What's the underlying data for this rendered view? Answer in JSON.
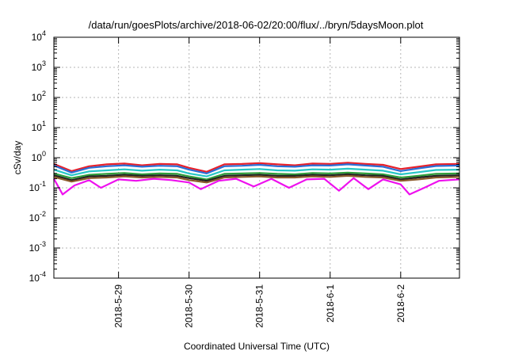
{
  "chart_data": {
    "type": "line",
    "title": "/data/run/goesPlots/archive/2018-06-02/20:00/flux/../bryn/5daysMoon.plot",
    "xlabel": "Coordinated Universal Time (UTC)",
    "ylabel": "cSv/day",
    "yscale": "log",
    "ylim": [
      0.0001,
      10000
    ],
    "xlim": [
      "2018-05-28 02:00",
      "2018-06-02 20:00"
    ],
    "grid": true,
    "y_ticks": [
      {
        "value": 0.0001,
        "base": "10",
        "exp": "-4"
      },
      {
        "value": 0.001,
        "base": "10",
        "exp": "-3"
      },
      {
        "value": 0.01,
        "base": "10",
        "exp": "-2"
      },
      {
        "value": 0.1,
        "base": "10",
        "exp": "-1"
      },
      {
        "value": 1,
        "base": "10",
        "exp": "0"
      },
      {
        "value": 10,
        "base": "10",
        "exp": "1"
      },
      {
        "value": 100,
        "base": "10",
        "exp": "2"
      },
      {
        "value": 1000,
        "base": "10",
        "exp": "3"
      },
      {
        "value": 10000,
        "base": "10",
        "exp": "4"
      }
    ],
    "x_ticks": [
      {
        "date": "2018-05-29 00:00",
        "label": "2018-5-29"
      },
      {
        "date": "2018-05-30 00:00",
        "label": "2018-5-30"
      },
      {
        "date": "2018-05-31 00:00",
        "label": "2018-5-31"
      },
      {
        "date": "2018-06-01 00:00",
        "label": "2018-6-1"
      },
      {
        "date": "2018-06-02 00:00",
        "label": "2018-6-2"
      }
    ],
    "series": [
      {
        "color": "#e8202a",
        "values": [
          [
            "2018-05-28 02:00",
            0.62
          ],
          [
            "2018-05-28 08:00",
            0.36
          ],
          [
            "2018-05-28 14:00",
            0.52
          ],
          [
            "2018-05-28 20:00",
            0.6
          ],
          [
            "2018-05-29 02:00",
            0.64
          ],
          [
            "2018-05-29 08:00",
            0.56
          ],
          [
            "2018-05-29 14:00",
            0.62
          ],
          [
            "2018-05-29 20:00",
            0.6
          ],
          [
            "2018-05-30 00:00",
            0.46
          ],
          [
            "2018-05-30 06:00",
            0.34
          ],
          [
            "2018-05-30 12:00",
            0.6
          ],
          [
            "2018-05-30 18:00",
            0.62
          ],
          [
            "2018-05-31 00:00",
            0.66
          ],
          [
            "2018-05-31 06:00",
            0.6
          ],
          [
            "2018-05-31 12:00",
            0.56
          ],
          [
            "2018-05-31 18:00",
            0.64
          ],
          [
            "2018-06-01 00:00",
            0.62
          ],
          [
            "2018-06-01 06:00",
            0.68
          ],
          [
            "2018-06-01 12:00",
            0.62
          ],
          [
            "2018-06-01 18:00",
            0.58
          ],
          [
            "2018-06-02 00:00",
            0.42
          ],
          [
            "2018-06-02 06:00",
            0.5
          ],
          [
            "2018-06-02 12:00",
            0.6
          ],
          [
            "2018-06-02 20:00",
            0.62
          ]
        ]
      },
      {
        "color": "#2a6fd6",
        "values": [
          [
            "2018-05-28 02:00",
            0.55
          ],
          [
            "2018-05-28 08:00",
            0.32
          ],
          [
            "2018-05-28 14:00",
            0.46
          ],
          [
            "2018-05-28 20:00",
            0.52
          ],
          [
            "2018-05-29 02:00",
            0.56
          ],
          [
            "2018-05-29 08:00",
            0.5
          ],
          [
            "2018-05-29 14:00",
            0.54
          ],
          [
            "2018-05-29 20:00",
            0.52
          ],
          [
            "2018-05-30 00:00",
            0.4
          ],
          [
            "2018-05-30 06:00",
            0.3
          ],
          [
            "2018-05-30 12:00",
            0.52
          ],
          [
            "2018-05-30 18:00",
            0.54
          ],
          [
            "2018-05-31 00:00",
            0.58
          ],
          [
            "2018-05-31 06:00",
            0.52
          ],
          [
            "2018-05-31 12:00",
            0.5
          ],
          [
            "2018-05-31 18:00",
            0.56
          ],
          [
            "2018-06-01 00:00",
            0.55
          ],
          [
            "2018-06-01 06:00",
            0.6
          ],
          [
            "2018-06-01 12:00",
            0.55
          ],
          [
            "2018-06-01 18:00",
            0.5
          ],
          [
            "2018-06-02 00:00",
            0.36
          ],
          [
            "2018-06-02 06:00",
            0.44
          ],
          [
            "2018-06-02 12:00",
            0.53
          ],
          [
            "2018-06-02 20:00",
            0.55
          ]
        ]
      },
      {
        "color": "#26c6c6",
        "values": [
          [
            "2018-05-28 02:00",
            0.4
          ],
          [
            "2018-05-28 08:00",
            0.26
          ],
          [
            "2018-05-28 14:00",
            0.35
          ],
          [
            "2018-05-28 20:00",
            0.38
          ],
          [
            "2018-05-29 02:00",
            0.41
          ],
          [
            "2018-05-29 08:00",
            0.37
          ],
          [
            "2018-05-29 14:00",
            0.4
          ],
          [
            "2018-05-29 20:00",
            0.38
          ],
          [
            "2018-05-30 00:00",
            0.3
          ],
          [
            "2018-05-30 06:00",
            0.24
          ],
          [
            "2018-05-30 12:00",
            0.38
          ],
          [
            "2018-05-30 18:00",
            0.4
          ],
          [
            "2018-05-31 00:00",
            0.42
          ],
          [
            "2018-05-31 06:00",
            0.38
          ],
          [
            "2018-05-31 12:00",
            0.37
          ],
          [
            "2018-05-31 18:00",
            0.41
          ],
          [
            "2018-06-01 00:00",
            0.4
          ],
          [
            "2018-06-01 06:00",
            0.43
          ],
          [
            "2018-06-01 12:00",
            0.4
          ],
          [
            "2018-06-01 18:00",
            0.37
          ],
          [
            "2018-06-02 00:00",
            0.28
          ],
          [
            "2018-06-02 06:00",
            0.33
          ],
          [
            "2018-06-02 12:00",
            0.39
          ],
          [
            "2018-06-02 20:00",
            0.4
          ]
        ]
      },
      {
        "color": "#2e9e3a",
        "values": [
          [
            "2018-05-28 02:00",
            0.3
          ],
          [
            "2018-05-28 08:00",
            0.21
          ],
          [
            "2018-05-28 14:00",
            0.27
          ],
          [
            "2018-05-28 20:00",
            0.29
          ],
          [
            "2018-05-29 02:00",
            0.31
          ],
          [
            "2018-05-29 08:00",
            0.28
          ],
          [
            "2018-05-29 14:00",
            0.3
          ],
          [
            "2018-05-29 20:00",
            0.29
          ],
          [
            "2018-05-30 00:00",
            0.24
          ],
          [
            "2018-05-30 06:00",
            0.19
          ],
          [
            "2018-05-30 12:00",
            0.29
          ],
          [
            "2018-05-30 18:00",
            0.3
          ],
          [
            "2018-05-31 00:00",
            0.31
          ],
          [
            "2018-05-31 06:00",
            0.29
          ],
          [
            "2018-05-31 12:00",
            0.28
          ],
          [
            "2018-05-31 18:00",
            0.31
          ],
          [
            "2018-06-01 00:00",
            0.3
          ],
          [
            "2018-06-01 06:00",
            0.32
          ],
          [
            "2018-06-01 12:00",
            0.3
          ],
          [
            "2018-06-01 18:00",
            0.28
          ],
          [
            "2018-06-02 00:00",
            0.22
          ],
          [
            "2018-06-02 06:00",
            0.25
          ],
          [
            "2018-06-02 12:00",
            0.29
          ],
          [
            "2018-06-02 20:00",
            0.3
          ]
        ]
      },
      {
        "color": "#222222",
        "values": [
          [
            "2018-05-28 02:00",
            0.26
          ],
          [
            "2018-05-28 08:00",
            0.18
          ],
          [
            "2018-05-28 14:00",
            0.24
          ],
          [
            "2018-05-28 20:00",
            0.25
          ],
          [
            "2018-05-29 02:00",
            0.27
          ],
          [
            "2018-05-29 08:00",
            0.25
          ],
          [
            "2018-05-29 14:00",
            0.26
          ],
          [
            "2018-05-29 20:00",
            0.25
          ],
          [
            "2018-05-30 00:00",
            0.21
          ],
          [
            "2018-05-30 06:00",
            0.17
          ],
          [
            "2018-05-30 12:00",
            0.25
          ],
          [
            "2018-05-30 18:00",
            0.26
          ],
          [
            "2018-05-31 00:00",
            0.27
          ],
          [
            "2018-05-31 06:00",
            0.25
          ],
          [
            "2018-05-31 12:00",
            0.25
          ],
          [
            "2018-05-31 18:00",
            0.27
          ],
          [
            "2018-06-01 00:00",
            0.26
          ],
          [
            "2018-06-01 06:00",
            0.28
          ],
          [
            "2018-06-01 12:00",
            0.26
          ],
          [
            "2018-06-01 18:00",
            0.25
          ],
          [
            "2018-06-02 00:00",
            0.19
          ],
          [
            "2018-06-02 06:00",
            0.22
          ],
          [
            "2018-06-02 12:00",
            0.25
          ],
          [
            "2018-06-02 20:00",
            0.26
          ]
        ]
      },
      {
        "color": "#8b5a2b",
        "values": [
          [
            "2018-05-28 02:00",
            0.23
          ],
          [
            "2018-05-28 08:00",
            0.16
          ],
          [
            "2018-05-28 14:00",
            0.21
          ],
          [
            "2018-05-28 20:00",
            0.22
          ],
          [
            "2018-05-29 02:00",
            0.24
          ],
          [
            "2018-05-29 08:00",
            0.22
          ],
          [
            "2018-05-29 14:00",
            0.23
          ],
          [
            "2018-05-29 20:00",
            0.22
          ],
          [
            "2018-05-30 00:00",
            0.18
          ],
          [
            "2018-05-30 06:00",
            0.15
          ],
          [
            "2018-05-30 12:00",
            0.22
          ],
          [
            "2018-05-30 18:00",
            0.23
          ],
          [
            "2018-05-31 00:00",
            0.24
          ],
          [
            "2018-05-31 06:00",
            0.22
          ],
          [
            "2018-05-31 12:00",
            0.22
          ],
          [
            "2018-05-31 18:00",
            0.24
          ],
          [
            "2018-06-01 00:00",
            0.23
          ],
          [
            "2018-06-01 06:00",
            0.25
          ],
          [
            "2018-06-01 12:00",
            0.23
          ],
          [
            "2018-06-01 18:00",
            0.22
          ],
          [
            "2018-06-02 00:00",
            0.17
          ],
          [
            "2018-06-02 06:00",
            0.19
          ],
          [
            "2018-06-02 12:00",
            0.22
          ],
          [
            "2018-06-02 20:00",
            0.23
          ]
        ]
      },
      {
        "color": "#ee11ee",
        "values": [
          [
            "2018-05-28 02:00",
            0.2
          ],
          [
            "2018-05-28 05:00",
            0.06
          ],
          [
            "2018-05-28 09:00",
            0.12
          ],
          [
            "2018-05-28 14:00",
            0.18
          ],
          [
            "2018-05-28 18:00",
            0.1
          ],
          [
            "2018-05-29 00:00",
            0.19
          ],
          [
            "2018-05-29 06:00",
            0.17
          ],
          [
            "2018-05-29 12:00",
            0.2
          ],
          [
            "2018-05-29 18:00",
            0.18
          ],
          [
            "2018-05-30 00:00",
            0.15
          ],
          [
            "2018-05-30 04:00",
            0.09
          ],
          [
            "2018-05-30 10:00",
            0.17
          ],
          [
            "2018-05-30 16:00",
            0.2
          ],
          [
            "2018-05-30 22:00",
            0.11
          ],
          [
            "2018-05-31 04:00",
            0.2
          ],
          [
            "2018-05-31 10:00",
            0.1
          ],
          [
            "2018-05-31 16:00",
            0.19
          ],
          [
            "2018-05-31 22:00",
            0.2
          ],
          [
            "2018-06-01 03:00",
            0.08
          ],
          [
            "2018-06-01 08:00",
            0.21
          ],
          [
            "2018-06-01 13:00",
            0.09
          ],
          [
            "2018-06-01 18:00",
            0.19
          ],
          [
            "2018-06-02 00:00",
            0.13
          ],
          [
            "2018-06-02 03:00",
            0.06
          ],
          [
            "2018-06-02 08:00",
            0.1
          ],
          [
            "2018-06-02 13:00",
            0.17
          ],
          [
            "2018-06-02 20:00",
            0.19
          ]
        ]
      }
    ]
  }
}
